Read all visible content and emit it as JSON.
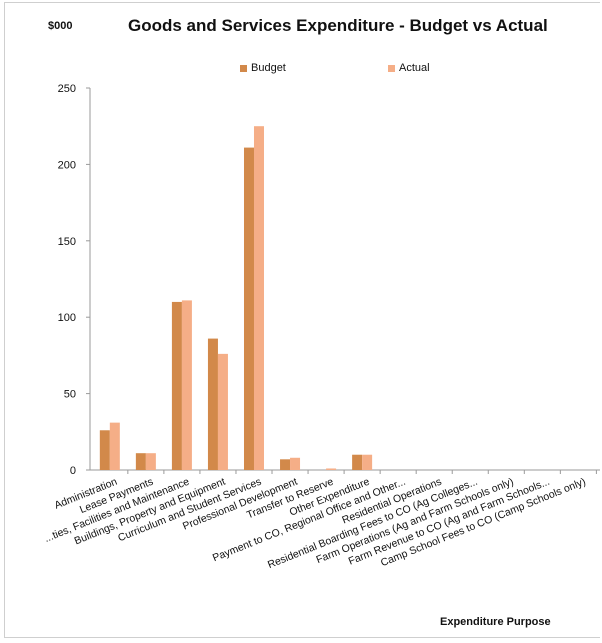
{
  "chart_data": {
    "type": "bar",
    "title": "Goods and Services Expenditure - Budget vs Actual",
    "ylabel": "$000",
    "xlabel": "Expenditure Purpose",
    "ylim": [
      0,
      250
    ],
    "yticks": [
      0,
      50,
      100,
      150,
      200,
      250
    ],
    "grid": false,
    "legend_position": "top",
    "categories": [
      "Administration",
      "Lease Payments",
      "...ties, Facilities and Maintenance",
      "Buildings, Property and Equipment",
      "Curriculum and Student Services",
      "Professional Development",
      "Transfer to Reserve",
      "Other Expenditure",
      "Payment to CO, Regional Office and Other...",
      "Residential Operations",
      "Residential Boarding Fees to CO (Ag Colleges...",
      "Farm Operations (Ag and Farm Schools only)",
      "Farm Revenue to CO (Ag and Farm Schools...",
      "Camp School Fees to CO (Camp Schools only)"
    ],
    "series": [
      {
        "name": "Budget",
        "color": "#d2894a",
        "values": [
          26,
          11,
          110,
          86,
          211,
          7,
          0,
          10,
          0,
          0,
          0,
          0,
          0,
          0
        ]
      },
      {
        "name": "Actual",
        "color": "#f5ae87",
        "values": [
          31,
          11,
          111,
          76,
          225,
          8,
          1,
          10,
          0,
          0,
          0,
          0,
          0,
          0
        ]
      }
    ]
  }
}
